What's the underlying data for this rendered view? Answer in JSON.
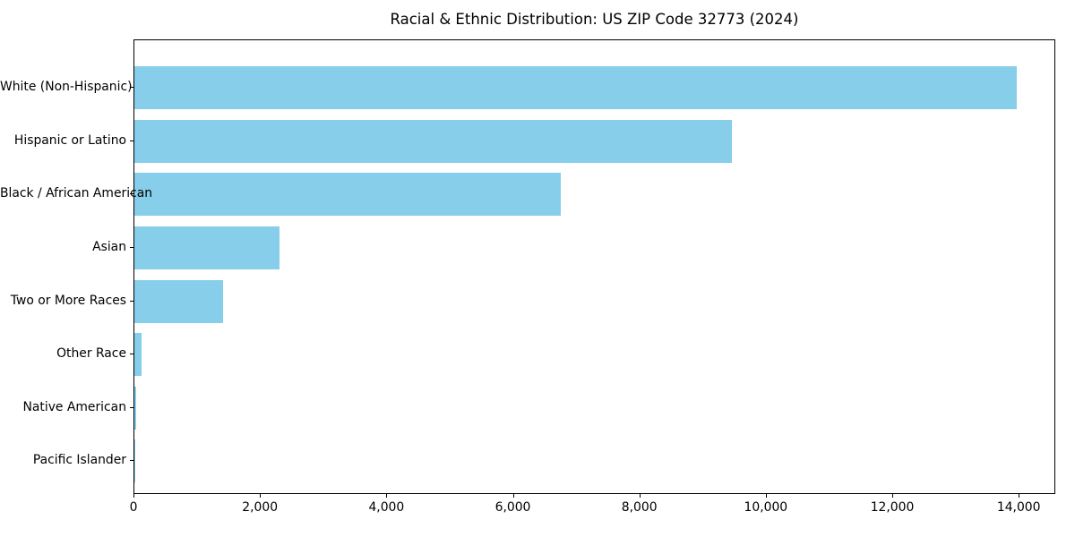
{
  "chart_data": {
    "type": "bar",
    "orientation": "horizontal",
    "title": "Racial & Ethnic Distribution: US ZIP Code 32773 (2024)",
    "xlabel": "",
    "ylabel": "",
    "grid": false,
    "bar_color": "#87CEEB",
    "xlim": [
      0,
      14550
    ],
    "categories": [
      "White (Non-Hispanic)",
      "Hispanic or Latino",
      "Black / African American",
      "Asian",
      "Two or More Races",
      "Other Race",
      "Native American",
      "Pacific Islander"
    ],
    "values": [
      13950,
      9450,
      6750,
      2300,
      1400,
      110,
      35,
      10
    ],
    "xticks": [
      {
        "value": 0,
        "label": "0"
      },
      {
        "value": 2000,
        "label": "2,000"
      },
      {
        "value": 4000,
        "label": "4,000"
      },
      {
        "value": 6000,
        "label": "6,000"
      },
      {
        "value": 8000,
        "label": "8,000"
      },
      {
        "value": 10000,
        "label": "10,000"
      },
      {
        "value": 12000,
        "label": "12,000"
      },
      {
        "value": 14000,
        "label": "14,000"
      }
    ]
  }
}
